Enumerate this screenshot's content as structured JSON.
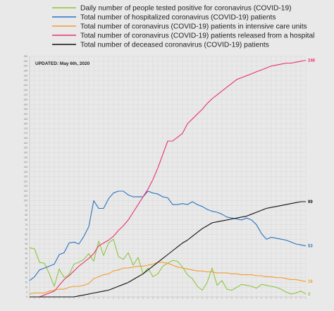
{
  "chart_data": {
    "type": "line",
    "title": "",
    "xlabel": "",
    "ylabel": "",
    "annotation": "UPDATED: May 6th, 2020",
    "ylim": [
      0,
      250
    ],
    "ytick_step": 5,
    "grid": true,
    "legend_position": "top",
    "x_count": 57,
    "series": [
      {
        "name": "Daily number of people tested positive for coronavirus (COVID-19)",
        "color": "#8dc63f",
        "end_label": "3",
        "values": [
          51,
          50,
          36,
          35,
          24,
          11,
          29,
          20,
          23,
          34,
          36,
          39,
          45,
          37,
          58,
          43,
          56,
          60,
          42,
          39,
          46,
          33,
          41,
          24,
          30,
          21,
          24,
          32,
          35,
          38,
          37,
          31,
          23,
          19,
          11,
          7,
          15,
          30,
          12,
          17,
          8,
          7,
          10,
          13,
          12,
          11,
          9,
          13,
          12,
          11,
          10,
          8,
          5,
          3,
          4,
          6,
          3
        ]
      },
      {
        "name": "Total number of hospitalized coronavirus (COVID-19) patients",
        "color": "#2a73bf",
        "end_label": "53",
        "values": [
          17,
          21,
          28,
          30,
          32,
          34,
          44,
          46,
          56,
          57,
          55,
          63,
          73,
          100,
          92,
          92,
          102,
          108,
          110,
          110,
          106,
          104,
          104,
          104,
          110,
          108,
          107,
          104,
          103,
          96,
          96,
          97,
          96,
          99,
          96,
          94,
          91,
          89,
          88,
          86,
          83,
          82,
          81,
          80,
          82,
          80,
          75,
          66,
          60,
          62,
          61,
          60,
          59,
          57,
          55,
          54,
          53
        ]
      },
      {
        "name": "Total number of coronavirus (COVID-19) patients in intensive care units",
        "color": "#f39c30",
        "end_label": "16",
        "values": [
          3,
          4,
          4,
          4,
          6,
          7,
          8,
          8,
          10,
          11,
          11,
          12,
          14,
          19,
          21,
          23,
          24,
          27,
          28,
          30,
          30,
          31,
          32,
          32,
          33,
          34,
          36,
          36,
          35,
          33,
          31,
          30,
          29,
          28,
          27,
          27,
          26,
          26,
          25,
          25,
          25,
          24,
          24,
          23,
          23,
          23,
          22,
          22,
          21,
          21,
          20,
          20,
          19,
          18,
          18,
          17,
          16
        ]
      },
      {
        "name": "Total number of coronavirus (COVID-19) patients released from a hospital",
        "color": "#e8336d",
        "end_label": "246",
        "values": [
          0,
          0,
          0,
          2,
          4,
          6,
          12,
          18,
          22,
          27,
          32,
          36,
          40,
          45,
          53,
          56,
          59,
          63,
          69,
          74,
          80,
          88,
          96,
          104,
          112,
          122,
          134,
          148,
          162,
          162,
          166,
          170,
          180,
          185,
          190,
          195,
          201,
          206,
          210,
          214,
          218,
          222,
          226,
          228,
          230,
          232,
          234,
          236,
          238,
          240,
          241,
          242,
          243,
          243,
          244,
          245,
          246
        ]
      },
      {
        "name": "Total number of deceased coronavirus (COVID-19) patients",
        "color": "#111111",
        "end_label": "99",
        "values": [
          0,
          0,
          0,
          0,
          0,
          0,
          0,
          0,
          0,
          0,
          1,
          2,
          3,
          4,
          5,
          6,
          7,
          9,
          11,
          13,
          15,
          18,
          21,
          24,
          28,
          32,
          36,
          40,
          44,
          48,
          52,
          56,
          59,
          63,
          67,
          71,
          74,
          77,
          78,
          79,
          80,
          81,
          82,
          83,
          84,
          86,
          88,
          90,
          92,
          93,
          94,
          95,
          96,
          97,
          98,
          99,
          99
        ]
      }
    ]
  }
}
